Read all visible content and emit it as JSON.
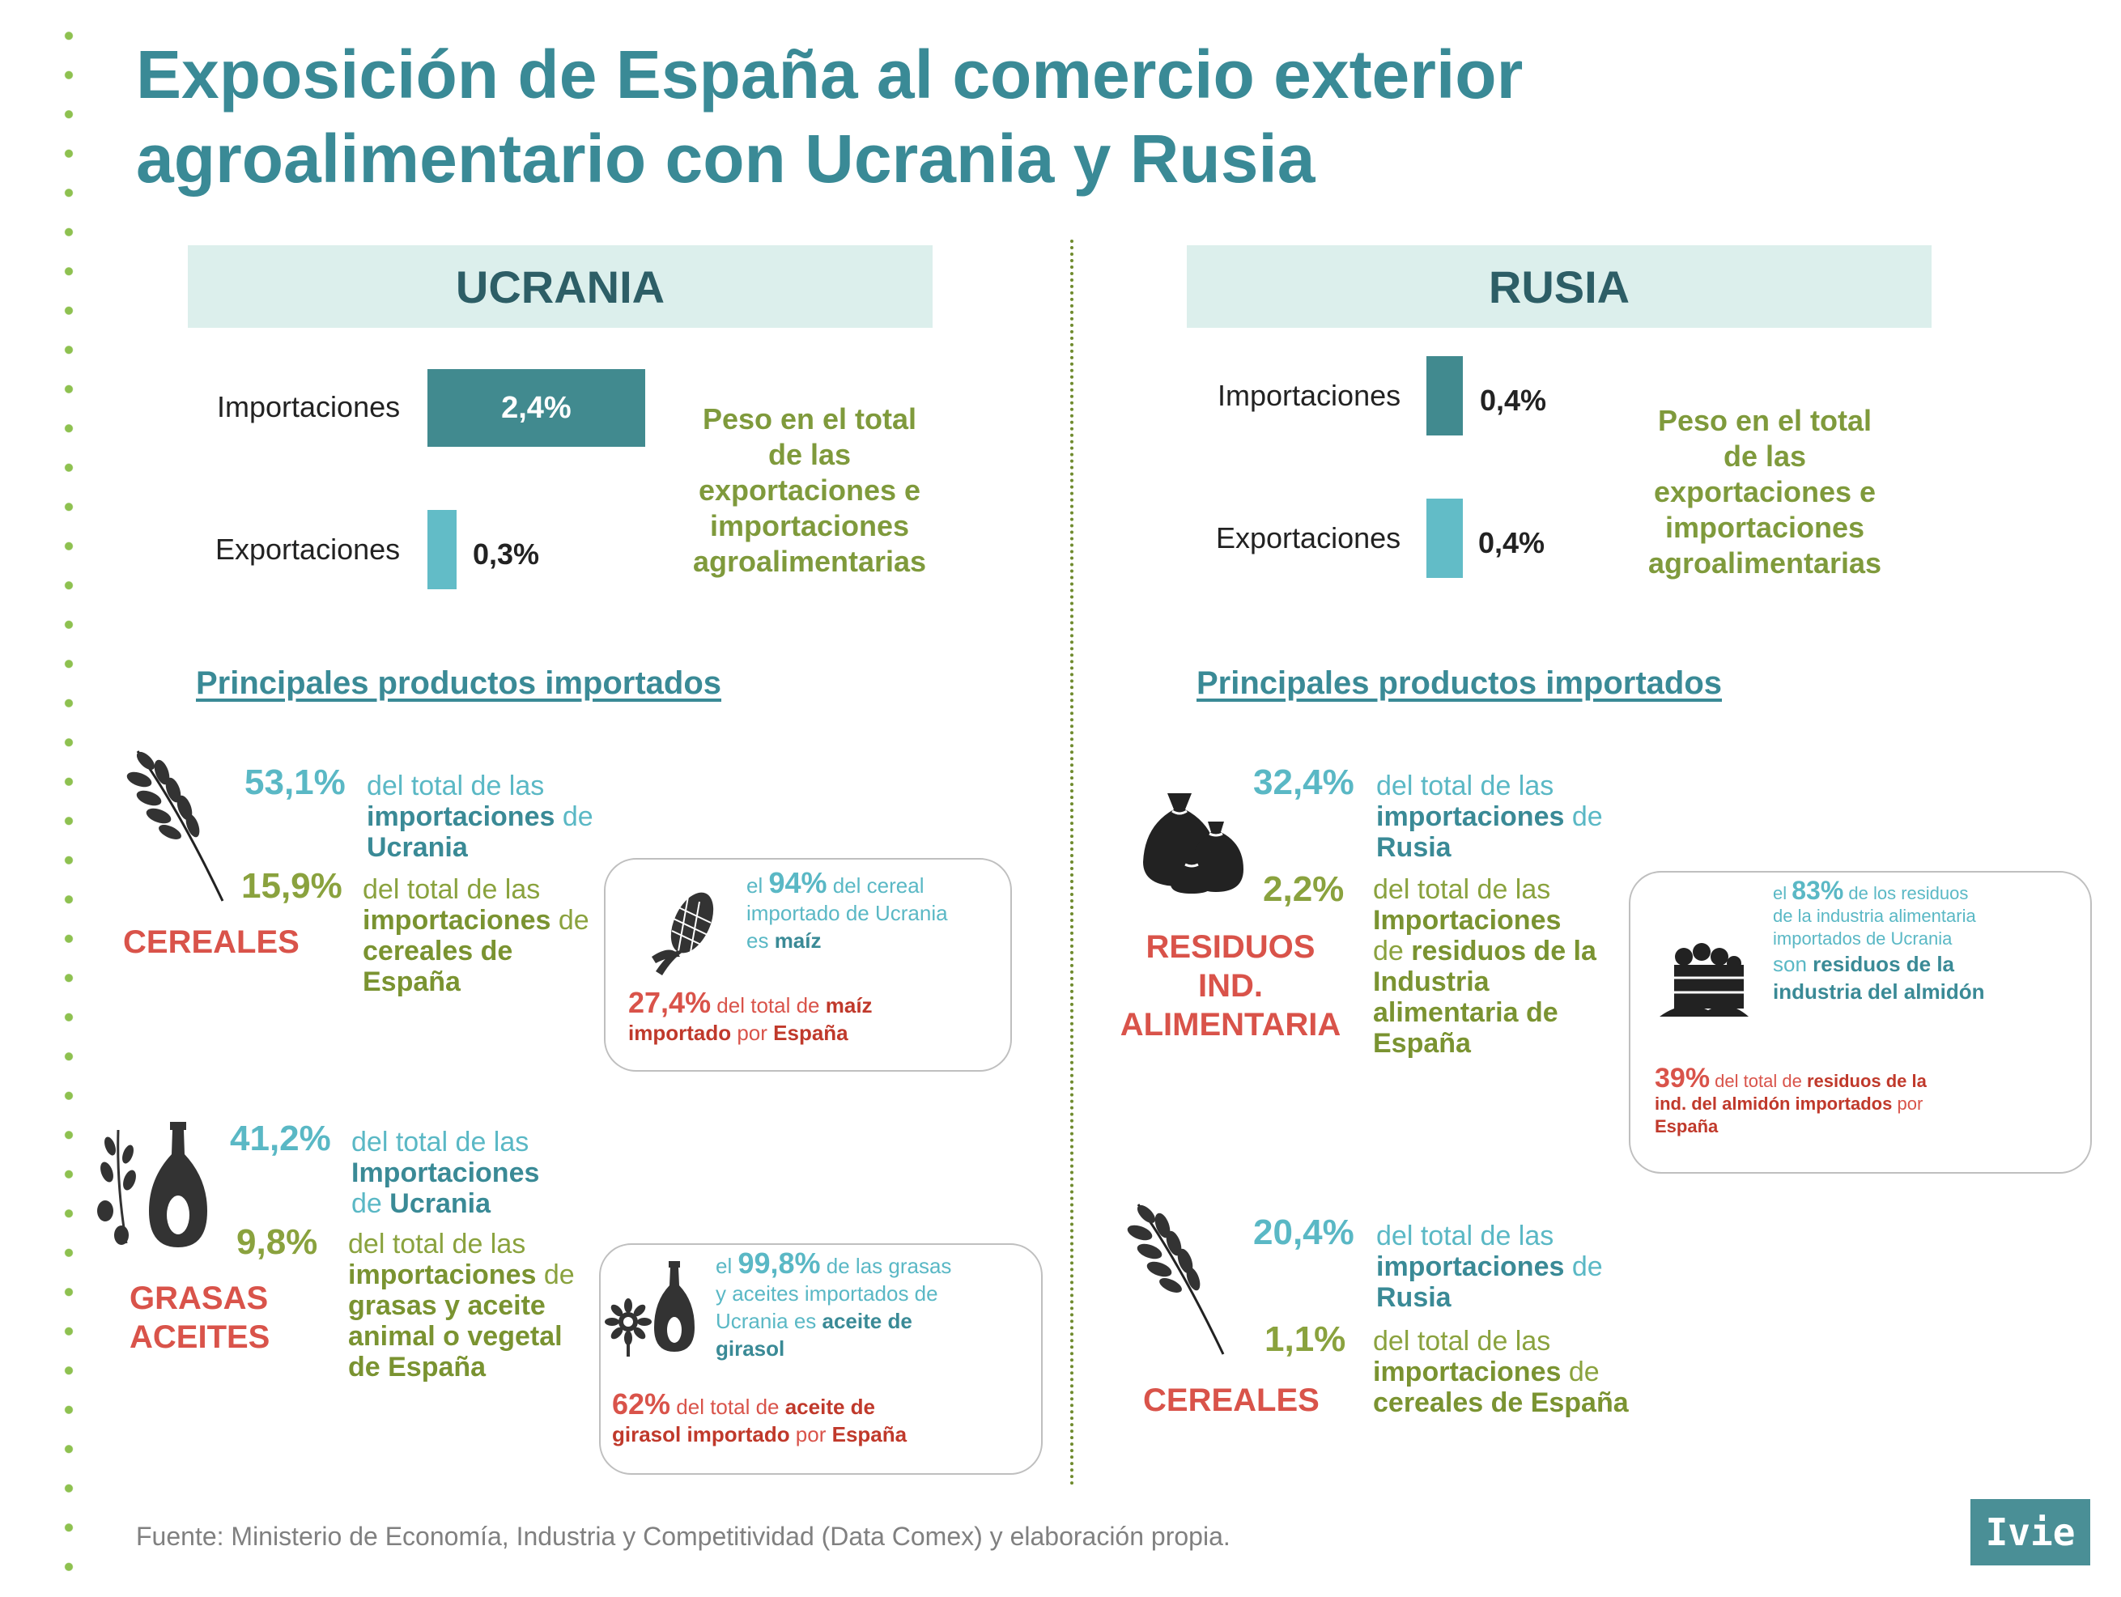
{
  "title": {
    "line1": "Exposición de España al comercio exterior",
    "line2": "agroalimentario con Ucrania y Rusia"
  },
  "colors": {
    "title": "#3a8a96",
    "import_bar": "#418a8f",
    "export_bar": "#62bcc7",
    "accent_green": "#8aa23e",
    "accent_red": "#d9534a"
  },
  "ucrania": {
    "header": "UCRANIA",
    "imports_label": "Importaciones",
    "imports_value": "2,4%",
    "imports_share": 2.4,
    "exports_label": "Exportaciones",
    "exports_value": "0,3%",
    "exports_share": 0.3,
    "peso": [
      "Peso en el total",
      "de las",
      "exportaciones e",
      "importaciones",
      "agroalimentarias"
    ],
    "section": "Principales productos importados",
    "cereales": {
      "pct1": "53,1%",
      "desc1_a": "del total de las",
      "desc1_b": "importaciones",
      "desc1_c": " de",
      "desc1_d": "Ucrania",
      "pct2": "15,9%",
      "desc2_a": "del total de las",
      "desc2_b": "importaciones",
      "desc2_c": " de",
      "desc2_d": "cereales de",
      "desc2_e": "España",
      "label": "CEREALES",
      "card": {
        "el": "el ",
        "pct": "94%",
        "t1": " del cereal",
        "t2": "importado de Ucrania",
        "t3": "es ",
        "t3b": "maíz",
        "rpct": "27,4%",
        "r1": " del total de ",
        "r1b": "maíz",
        "r2b": "importado",
        "r2": " por ",
        "r2c": "España"
      }
    },
    "grasas": {
      "pct1": "41,2%",
      "desc1_a": "del total de las",
      "desc1_b": "Importaciones",
      "desc1_c": "de ",
      "desc1_d": "Ucrania",
      "pct2": "9,8%",
      "desc2_a": "del total de las",
      "desc2_b": "importaciones",
      "desc2_c": " de",
      "desc2_d": "grasas y aceite",
      "desc2_e": "animal o vegetal",
      "desc2_f": "de España",
      "label1": "GRASAS",
      "label2": "ACEITES",
      "card": {
        "el": "el ",
        "pct": "99,8%",
        "t1": " de las grasas",
        "t2": "y aceites importados de",
        "t3": "Ucrania es ",
        "t3b": "aceite de",
        "t4b": "girasol",
        "rpct": "62%",
        "r1": " del total de ",
        "r1b": "aceite de",
        "r2b": "girasol importado",
        "r2": " por ",
        "r2c": "España"
      }
    }
  },
  "rusia": {
    "header": "RUSIA",
    "imports_label": "Importaciones",
    "imports_value": "0,4%",
    "imports_share": 0.4,
    "exports_label": "Exportaciones",
    "exports_value": "0,4%",
    "exports_share": 0.4,
    "peso": [
      "Peso en el total",
      "de las",
      "exportaciones e",
      "importaciones",
      "agroalimentarias"
    ],
    "section": "Principales productos importados",
    "residuos": {
      "pct1": "32,4%",
      "desc1_a": "del total de las",
      "desc1_b": "importaciones",
      "desc1_c": " de",
      "desc1_d": "Rusia",
      "pct2": "2,2%",
      "desc2_a": "del total de las",
      "desc2_b": "Importaciones",
      "desc2_c": "de ",
      "desc2_cb": "residuos de la",
      "desc2_d": "Industria",
      "desc2_e": "alimentaria de",
      "desc2_f": "España",
      "label1": "RESIDUOS IND.",
      "label2": "ALIMENTARIA",
      "card": {
        "el": "el ",
        "pct": "83%",
        "t1": " de los residuos",
        "t2": "de la industria alimentaria",
        "t3": "importados de Ucrania",
        "t4": "son ",
        "t4b": "residuos de la",
        "t5b": "industria del almidón",
        "rpct": "39%",
        "r1": " del total de ",
        "r1b": "residuos de la",
        "r2b": "ind. del almidón importados",
        "r2": " por",
        "r3b": "España"
      }
    },
    "cereales": {
      "pct1": "20,4%",
      "desc1_a": "del total de las",
      "desc1_b": "importaciones",
      "desc1_c": " de",
      "desc1_d": "Rusia",
      "pct2": "1,1%",
      "desc2_a": "del total de las",
      "desc2_b": "importaciones",
      "desc2_c": " de",
      "desc2_d": "cereales de España",
      "label": "CEREALES"
    }
  },
  "footer": "Fuente: Ministerio de Economía, Industria  y Competitividad (Data Comex) y elaboración propia.",
  "logo": "Ivie"
}
